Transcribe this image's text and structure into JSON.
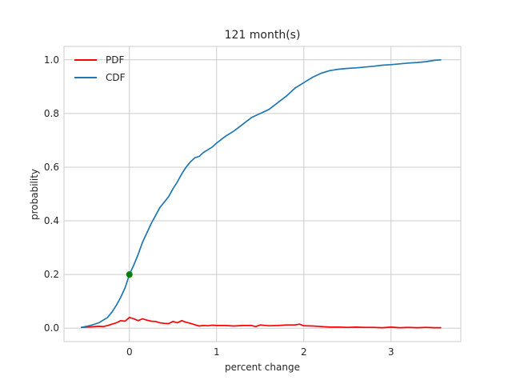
{
  "chart_data": {
    "type": "line",
    "title": "121 month(s)",
    "xlabel": "percent change",
    "ylabel": "probability",
    "xlim": [
      -0.75,
      3.8
    ],
    "ylim": [
      -0.05,
      1.05
    ],
    "xticks": [
      0,
      1,
      2,
      3
    ],
    "yticks": [
      0.0,
      0.2,
      0.4,
      0.6,
      0.8,
      1.0
    ],
    "xtick_labels": [
      "0",
      "1",
      "2",
      "3"
    ],
    "ytick_labels": [
      "0.0",
      "0.2",
      "0.4",
      "0.6",
      "0.8",
      "1.0"
    ],
    "grid": true,
    "legend_position": "top-left",
    "series": [
      {
        "name": "PDF",
        "color": "#ff0000",
        "x": [
          -0.55,
          -0.45,
          -0.35,
          -0.3,
          -0.25,
          -0.2,
          -0.15,
          -0.1,
          -0.05,
          0.0,
          0.05,
          0.1,
          0.15,
          0.2,
          0.25,
          0.3,
          0.35,
          0.4,
          0.45,
          0.5,
          0.55,
          0.6,
          0.65,
          0.7,
          0.75,
          0.8,
          0.85,
          0.9,
          0.95,
          1.0,
          1.1,
          1.2,
          1.3,
          1.4,
          1.45,
          1.5,
          1.6,
          1.7,
          1.8,
          1.9,
          1.95,
          2.0,
          2.1,
          2.2,
          2.3,
          2.4,
          2.5,
          2.6,
          2.7,
          2.8,
          2.9,
          3.0,
          3.1,
          3.2,
          3.3,
          3.4,
          3.5,
          3.57
        ],
        "y": [
          0.003,
          0.005,
          0.007,
          0.006,
          0.01,
          0.015,
          0.02,
          0.028,
          0.026,
          0.04,
          0.035,
          0.028,
          0.035,
          0.03,
          0.026,
          0.025,
          0.02,
          0.018,
          0.017,
          0.025,
          0.02,
          0.028,
          0.022,
          0.018,
          0.013,
          0.008,
          0.01,
          0.009,
          0.011,
          0.01,
          0.01,
          0.008,
          0.01,
          0.01,
          0.006,
          0.012,
          0.009,
          0.01,
          0.012,
          0.012,
          0.015,
          0.009,
          0.008,
          0.006,
          0.004,
          0.004,
          0.003,
          0.004,
          0.003,
          0.003,
          0.002,
          0.004,
          0.002,
          0.003,
          0.002,
          0.003,
          0.002,
          0.002
        ]
      },
      {
        "name": "CDF",
        "color": "#1f77b4",
        "x": [
          -0.55,
          -0.45,
          -0.35,
          -0.25,
          -0.2,
          -0.15,
          -0.1,
          -0.05,
          0.0,
          0.05,
          0.1,
          0.15,
          0.2,
          0.25,
          0.3,
          0.35,
          0.4,
          0.45,
          0.5,
          0.55,
          0.6,
          0.65,
          0.7,
          0.75,
          0.8,
          0.85,
          0.9,
          0.95,
          1.0,
          1.1,
          1.2,
          1.3,
          1.4,
          1.5,
          1.6,
          1.7,
          1.8,
          1.9,
          2.0,
          2.1,
          2.2,
          2.3,
          2.4,
          2.5,
          2.6,
          2.7,
          2.8,
          2.9,
          3.0,
          3.1,
          3.2,
          3.3,
          3.4,
          3.5,
          3.57
        ],
        "y": [
          0.003,
          0.01,
          0.02,
          0.04,
          0.06,
          0.085,
          0.115,
          0.15,
          0.2,
          0.235,
          0.275,
          0.32,
          0.355,
          0.39,
          0.42,
          0.45,
          0.47,
          0.49,
          0.52,
          0.545,
          0.575,
          0.6,
          0.62,
          0.635,
          0.64,
          0.655,
          0.665,
          0.675,
          0.69,
          0.715,
          0.735,
          0.76,
          0.785,
          0.8,
          0.815,
          0.84,
          0.865,
          0.895,
          0.915,
          0.935,
          0.95,
          0.96,
          0.965,
          0.968,
          0.97,
          0.973,
          0.976,
          0.98,
          0.982,
          0.985,
          0.988,
          0.99,
          0.993,
          0.998,
          1.0
        ]
      }
    ],
    "marker": {
      "x": 0.0,
      "y": 0.2,
      "color": "#008000"
    }
  }
}
